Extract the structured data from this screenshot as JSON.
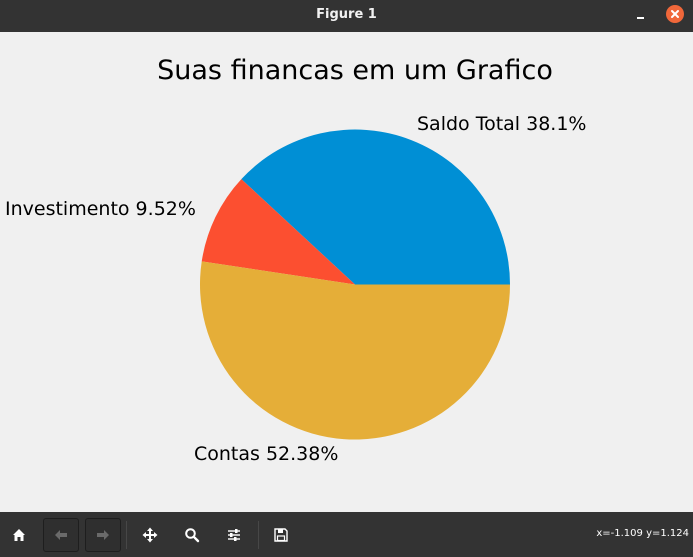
{
  "window": {
    "title": "Figure 1"
  },
  "colors": {
    "titlebar_bg": "#333333",
    "close_button": "#f0673a",
    "canvas_bg": "#f0f0f0",
    "toolbar_bg": "#333333"
  },
  "toolbar": {
    "buttons": [
      {
        "name": "home",
        "icon": "home-icon"
      },
      {
        "name": "back",
        "icon": "arrow-left-icon"
      },
      {
        "name": "forward",
        "icon": "arrow-right-icon"
      },
      {
        "name": "pan",
        "icon": "move-icon"
      },
      {
        "name": "zoom",
        "icon": "magnifier-icon"
      },
      {
        "name": "configure-subplots",
        "icon": "sliders-icon"
      },
      {
        "name": "save",
        "icon": "floppy-disk-icon"
      }
    ],
    "coords": "x=-1.109 y=1.124"
  },
  "chart_data": {
    "type": "pie",
    "title": "Suas financas em um Grafico",
    "start_angle_deg": 0,
    "direction": "counterclockwise",
    "labels_text": [
      "Saldo Total 38.1%",
      "Investimento 9.52%",
      "Contas 52.38%"
    ],
    "slices": [
      {
        "name": "Saldo Total",
        "value": 38.1,
        "color": "#008fd5",
        "label": "Saldo Total 38.1%"
      },
      {
        "name": "Investimento",
        "value": 9.52,
        "color": "#fc4f30",
        "label": "Investimento 9.52%"
      },
      {
        "name": "Contas",
        "value": 52.38,
        "color": "#e5ae38",
        "label": "Contas 52.38%"
      }
    ]
  }
}
